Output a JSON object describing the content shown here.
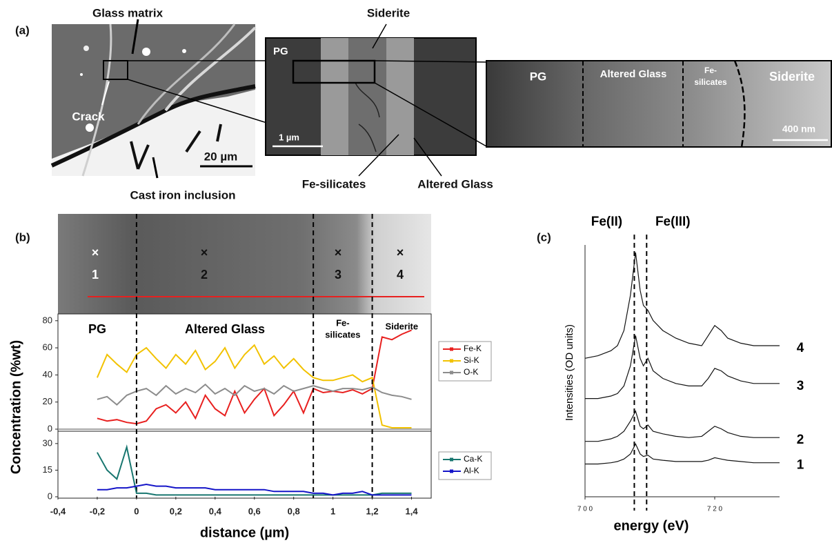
{
  "figure": {
    "panel_a": {
      "label": "(a)",
      "overview": {
        "labels": [
          "Glass matrix",
          "Crack",
          "Cast iron inclusion"
        ],
        "scale_bar": "20 µm"
      },
      "tem": {
        "labels": [
          "PG",
          "Siderite",
          "Fe-silicates",
          "Altered Glass"
        ],
        "scale_bar": "1 µm"
      },
      "zoom": {
        "labels": [
          "PG",
          "Altered Glass",
          [
            "Fe-",
            "silicates"
          ],
          "Siderite"
        ],
        "scale_bar": "400 nm"
      }
    },
    "panel_b": {
      "label": "(b)",
      "points": [
        "1",
        "2",
        "3",
        "4"
      ]
    },
    "panel_c": {
      "label": "(c)"
    }
  },
  "chart_data": [
    {
      "type": "line",
      "ylabel": "Concentration (%wt)",
      "x": [
        -0.2,
        -0.15,
        -0.1,
        -0.05,
        0,
        0.05,
        0.1,
        0.15,
        0.2,
        0.25,
        0.3,
        0.35,
        0.4,
        0.45,
        0.5,
        0.55,
        0.6,
        0.65,
        0.7,
        0.75,
        0.8,
        0.85,
        0.9,
        0.95,
        1,
        1.05,
        1.1,
        1.15,
        1.2,
        1.25,
        1.3,
        1.35,
        1.4
      ],
      "series": [
        {
          "name": "Fe-K",
          "color": "#e8201f",
          "values": [
            8,
            6,
            7,
            5,
            4,
            6,
            15,
            18,
            12,
            20,
            8,
            25,
            15,
            10,
            28,
            12,
            22,
            30,
            10,
            18,
            28,
            12,
            30,
            27,
            28,
            27,
            29,
            26,
            30,
            68,
            66,
            70,
            73
          ]
        },
        {
          "name": "Si-K",
          "color": "#f2c200",
          "values": [
            38,
            55,
            48,
            42,
            55,
            60,
            52,
            45,
            55,
            48,
            58,
            44,
            50,
            60,
            45,
            55,
            62,
            48,
            54,
            45,
            52,
            44,
            38,
            36,
            36,
            38,
            40,
            35,
            38,
            3,
            1,
            1,
            1
          ]
        },
        {
          "name": "O-K",
          "color": "#8c8c8c",
          "values": [
            22,
            24,
            18,
            25,
            28,
            30,
            25,
            32,
            26,
            30,
            27,
            33,
            26,
            30,
            25,
            32,
            28,
            30,
            26,
            32,
            28,
            30,
            32,
            30,
            28,
            30,
            30,
            29,
            31,
            27,
            25,
            24,
            22
          ]
        }
      ],
      "xlim": [
        -0.4,
        1.5
      ],
      "ylim": [
        0,
        85
      ],
      "yticks": [
        0,
        20,
        40,
        60,
        80
      ],
      "vlines": [
        0,
        0.9,
        1.2
      ],
      "zone_labels": [
        "PG",
        "Altered Glass",
        [
          "Fe-",
          "silicates"
        ],
        "Siderite"
      ],
      "legend": "right"
    },
    {
      "type": "line",
      "xlabel": "distance (µm)",
      "x": [
        -0.2,
        -0.15,
        -0.1,
        -0.05,
        0,
        0.05,
        0.1,
        0.15,
        0.2,
        0.25,
        0.3,
        0.35,
        0.4,
        0.45,
        0.5,
        0.55,
        0.6,
        0.65,
        0.7,
        0.75,
        0.8,
        0.85,
        0.9,
        0.95,
        1,
        1.05,
        1.1,
        1.15,
        1.2,
        1.25,
        1.3,
        1.35,
        1.4
      ],
      "series": [
        {
          "name": "Ca-K",
          "color": "#17766f",
          "values": [
            25,
            15,
            10,
            28,
            2,
            2,
            1,
            1,
            1,
            1,
            1,
            1,
            1,
            1,
            1,
            1,
            1,
            1,
            1,
            1,
            1,
            1,
            1,
            1,
            1,
            1,
            1,
            1,
            1,
            2,
            2,
            2,
            2
          ]
        },
        {
          "name": "Al-K",
          "color": "#1414c8",
          "values": [
            4,
            4,
            5,
            5,
            6,
            7,
            6,
            6,
            5,
            5,
            5,
            5,
            4,
            4,
            4,
            4,
            4,
            4,
            3,
            3,
            3,
            3,
            2,
            2,
            1,
            2,
            2,
            3,
            1,
            1,
            1,
            1,
            1
          ]
        }
      ],
      "xlim": [
        -0.4,
        1.5
      ],
      "ylim": [
        0,
        35
      ],
      "yticks": [
        0,
        15,
        30
      ],
      "xticks": [
        {
          "value": -0.4,
          "label": "-0,4"
        },
        {
          "value": -0.2,
          "label": "-0,2"
        },
        0,
        {
          "value": 0.2,
          "label": "0,2"
        },
        {
          "value": 0.4,
          "label": "0,4"
        },
        {
          "value": 0.6,
          "label": "0,6"
        },
        {
          "value": 0.8,
          "label": "0,8"
        },
        1,
        {
          "value": 1.2,
          "label": "1,2"
        },
        {
          "value": 1.4,
          "label": "1,4"
        }
      ],
      "legend": "right"
    },
    {
      "type": "line",
      "xlabel": "energy (eV)",
      "ylabel": "Intensities (OD units)",
      "x": [
        700,
        702,
        704,
        705,
        706,
        707,
        707.8,
        708.5,
        709,
        709.7,
        710.5,
        712,
        714,
        716,
        718,
        719,
        720,
        721,
        722,
        724,
        726,
        728,
        730
      ],
      "series": [
        {
          "name": "1",
          "color": "#111111",
          "values": [
            0.13,
            0.13,
            0.135,
            0.14,
            0.15,
            0.17,
            0.21,
            0.17,
            0.16,
            0.165,
            0.15,
            0.145,
            0.14,
            0.14,
            0.14,
            0.145,
            0.155,
            0.15,
            0.145,
            0.14,
            0.135,
            0.135,
            0.135
          ]
        },
        {
          "name": "2",
          "color": "#111111",
          "values": [
            0.22,
            0.22,
            0.23,
            0.24,
            0.26,
            0.3,
            0.34,
            0.28,
            0.27,
            0.285,
            0.26,
            0.25,
            0.24,
            0.235,
            0.24,
            0.26,
            0.28,
            0.27,
            0.255,
            0.24,
            0.235,
            0.235,
            0.235
          ]
        },
        {
          "name": "3",
          "color": "#111111",
          "values": [
            0.39,
            0.39,
            0.4,
            0.41,
            0.44,
            0.52,
            0.64,
            0.55,
            0.52,
            0.55,
            0.5,
            0.47,
            0.45,
            0.44,
            0.44,
            0.47,
            0.51,
            0.5,
            0.48,
            0.46,
            0.45,
            0.45,
            0.45
          ]
        },
        {
          "name": "4",
          "color": "#111111",
          "values": [
            0.55,
            0.56,
            0.58,
            0.6,
            0.66,
            0.8,
            0.97,
            0.82,
            0.76,
            0.74,
            0.7,
            0.66,
            0.63,
            0.61,
            0.6,
            0.64,
            0.68,
            0.66,
            0.63,
            0.61,
            0.6,
            0.6,
            0.6
          ]
        }
      ],
      "xlim": [
        700,
        730
      ],
      "ylim": [
        0,
        1
      ],
      "xticks": [
        {
          "value": 700,
          "label": "7 0 0"
        },
        {
          "value": 720,
          "label": "7 2 0"
        }
      ],
      "vlines": [
        {
          "value": 707.6,
          "label": "Fe(II)"
        },
        {
          "value": 709.5,
          "label": "Fe(III)"
        }
      ]
    }
  ]
}
